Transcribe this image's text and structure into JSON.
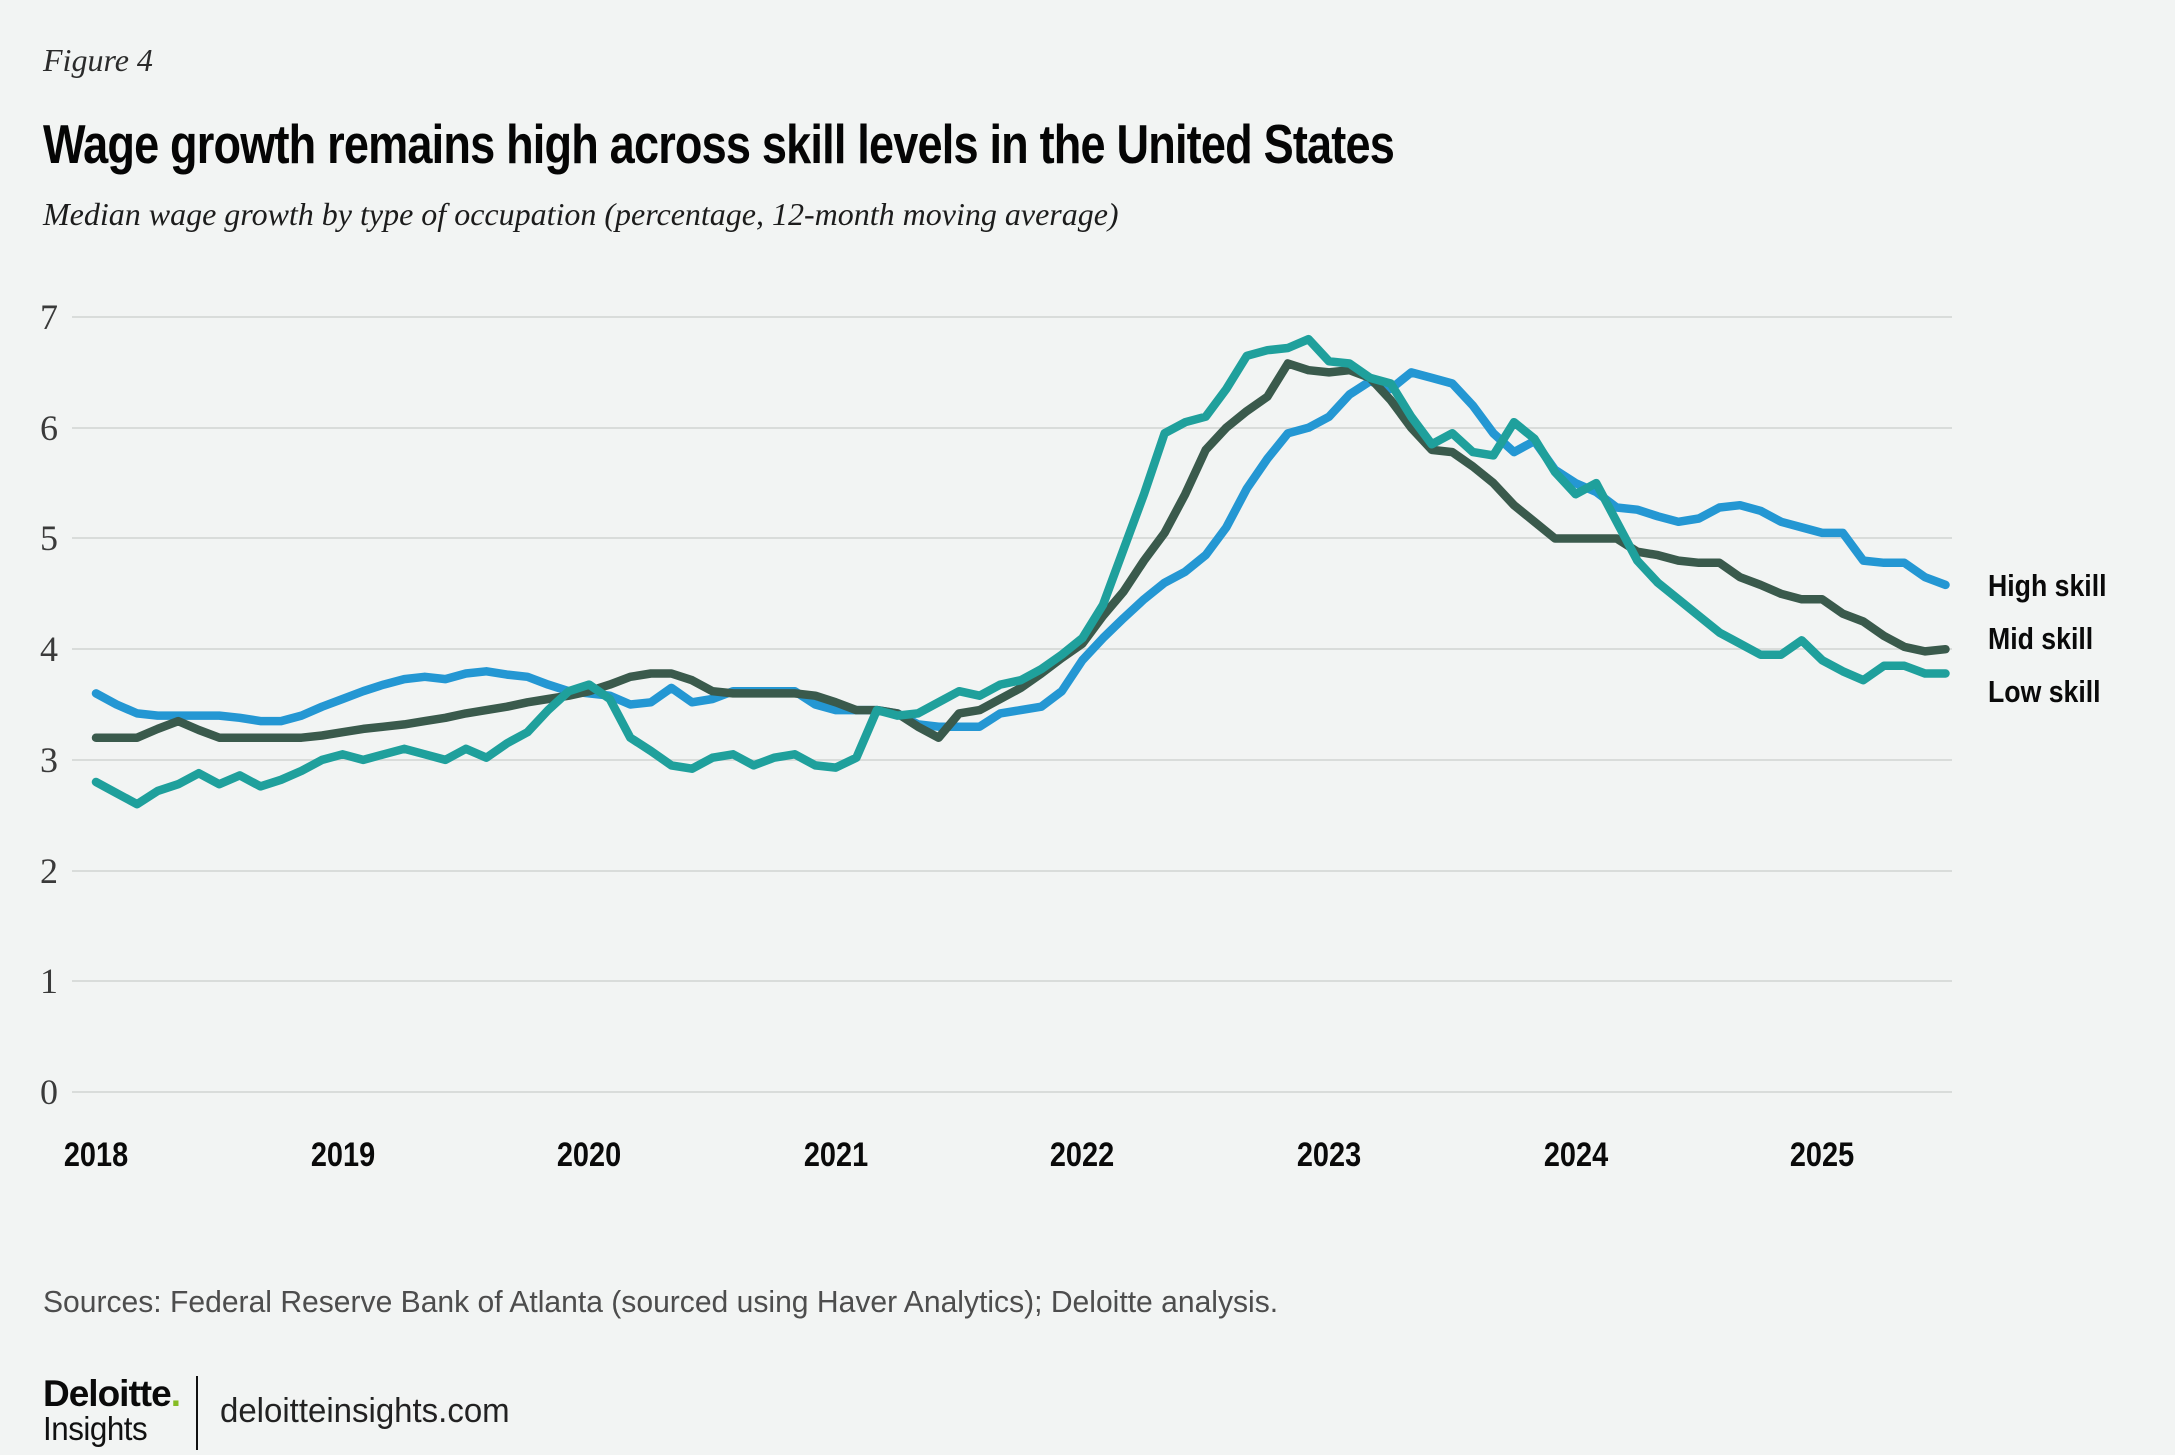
{
  "figure_label": "Figure 4",
  "title": "Wage growth remains high across skill levels in the United States",
  "subtitle": "Median wage growth by type of occupation (percentage, 12-month moving average)",
  "source_note": "Sources: Federal Reserve Bank of Atlanta (sourced using Haver Analytics); Deloitte analysis.",
  "logo": {
    "brand": "Deloitte",
    "brand_dot": ".",
    "brand_dot_color": "#86BC25",
    "sub": "Insights",
    "site": "deloitteinsights.com"
  },
  "colors": {
    "background": "#f2f4f3",
    "gridline": "#d9dcda",
    "high_skill": "#2497d3",
    "mid_skill": "#3a5a4c",
    "low_skill": "#1fa09c"
  },
  "chart_data": {
    "type": "line",
    "title": "Wage growth remains high across skill levels in the United States",
    "subtitle": "Median wage growth by type of occupation (percentage, 12-month moving average)",
    "xlabel": "",
    "ylabel": "",
    "ylim": [
      0,
      7
    ],
    "grid": true,
    "legend_position": "right of line endpoints",
    "frequency": "monthly",
    "x_range": [
      "2018-01",
      "2025-07"
    ],
    "x_tick_labels": [
      "2018",
      "2019",
      "2020",
      "2021",
      "2022",
      "2023",
      "2024",
      "2025"
    ],
    "y_tick_labels": [
      "0",
      "1",
      "2",
      "3",
      "4",
      "5",
      "6",
      "7"
    ],
    "series": [
      {
        "name": "High skill",
        "color": "#2497d3",
        "values": [
          3.6,
          3.5,
          3.42,
          3.4,
          3.4,
          3.4,
          3.4,
          3.38,
          3.35,
          3.35,
          3.4,
          3.48,
          3.55,
          3.62,
          3.68,
          3.73,
          3.75,
          3.73,
          3.78,
          3.8,
          3.77,
          3.75,
          3.68,
          3.62,
          3.6,
          3.58,
          3.5,
          3.52,
          3.65,
          3.52,
          3.55,
          3.62,
          3.62,
          3.62,
          3.62,
          3.5,
          3.45,
          3.45,
          3.45,
          3.42,
          3.32,
          3.3,
          3.3,
          3.3,
          3.42,
          3.45,
          3.48,
          3.62,
          3.9,
          4.1,
          4.28,
          4.45,
          4.6,
          4.7,
          4.85,
          5.1,
          5.45,
          5.72,
          5.95,
          6.0,
          6.1,
          6.3,
          6.42,
          6.35,
          6.5,
          6.45,
          6.4,
          6.2,
          5.95,
          5.78,
          5.88,
          5.62,
          5.5,
          5.42,
          5.28,
          5.26,
          5.2,
          5.15,
          5.18,
          5.28,
          5.3,
          5.25,
          5.15,
          5.1,
          5.05,
          5.05,
          4.8,
          4.78,
          4.78,
          4.65,
          4.58
        ]
      },
      {
        "name": "Mid skill",
        "color": "#3a5a4c",
        "values": [
          3.2,
          3.2,
          3.2,
          3.28,
          3.35,
          3.27,
          3.2,
          3.2,
          3.2,
          3.2,
          3.2,
          3.22,
          3.25,
          3.28,
          3.3,
          3.32,
          3.35,
          3.38,
          3.42,
          3.45,
          3.48,
          3.52,
          3.55,
          3.58,
          3.62,
          3.68,
          3.75,
          3.78,
          3.78,
          3.72,
          3.62,
          3.6,
          3.6,
          3.6,
          3.6,
          3.58,
          3.52,
          3.45,
          3.45,
          3.42,
          3.3,
          3.2,
          3.42,
          3.45,
          3.55,
          3.65,
          3.78,
          3.92,
          4.05,
          4.3,
          4.52,
          4.8,
          5.05,
          5.4,
          5.8,
          6.0,
          6.15,
          6.28,
          6.58,
          6.52,
          6.5,
          6.52,
          6.45,
          6.25,
          6.0,
          5.8,
          5.78,
          5.65,
          5.5,
          5.3,
          5.15,
          5.0,
          5.0,
          5.0,
          5.0,
          4.88,
          4.85,
          4.8,
          4.78,
          4.78,
          4.65,
          4.58,
          4.5,
          4.45,
          4.45,
          4.32,
          4.25,
          4.12,
          4.02,
          3.98,
          4.0
        ]
      },
      {
        "name": "Low skill",
        "color": "#1fa09c",
        "values": [
          2.8,
          2.7,
          2.6,
          2.72,
          2.78,
          2.88,
          2.78,
          2.86,
          2.76,
          2.82,
          2.9,
          3.0,
          3.05,
          3.0,
          3.05,
          3.1,
          3.05,
          3.0,
          3.1,
          3.02,
          3.15,
          3.25,
          3.45,
          3.62,
          3.68,
          3.55,
          3.2,
          3.08,
          2.95,
          2.92,
          3.02,
          3.05,
          2.95,
          3.02,
          3.05,
          2.95,
          2.93,
          3.02,
          3.45,
          3.4,
          3.42,
          3.52,
          3.62,
          3.58,
          3.68,
          3.72,
          3.82,
          3.95,
          4.1,
          4.4,
          4.9,
          5.4,
          5.95,
          6.05,
          6.1,
          6.35,
          6.65,
          6.7,
          6.72,
          6.8,
          6.6,
          6.58,
          6.45,
          6.4,
          6.1,
          5.85,
          5.95,
          5.78,
          5.75,
          6.05,
          5.9,
          5.6,
          5.4,
          5.5,
          5.15,
          4.8,
          4.6,
          4.45,
          4.3,
          4.15,
          4.05,
          3.95,
          3.95,
          4.08,
          3.9,
          3.8,
          3.72,
          3.85,
          3.85,
          3.78,
          3.78
        ]
      }
    ]
  }
}
